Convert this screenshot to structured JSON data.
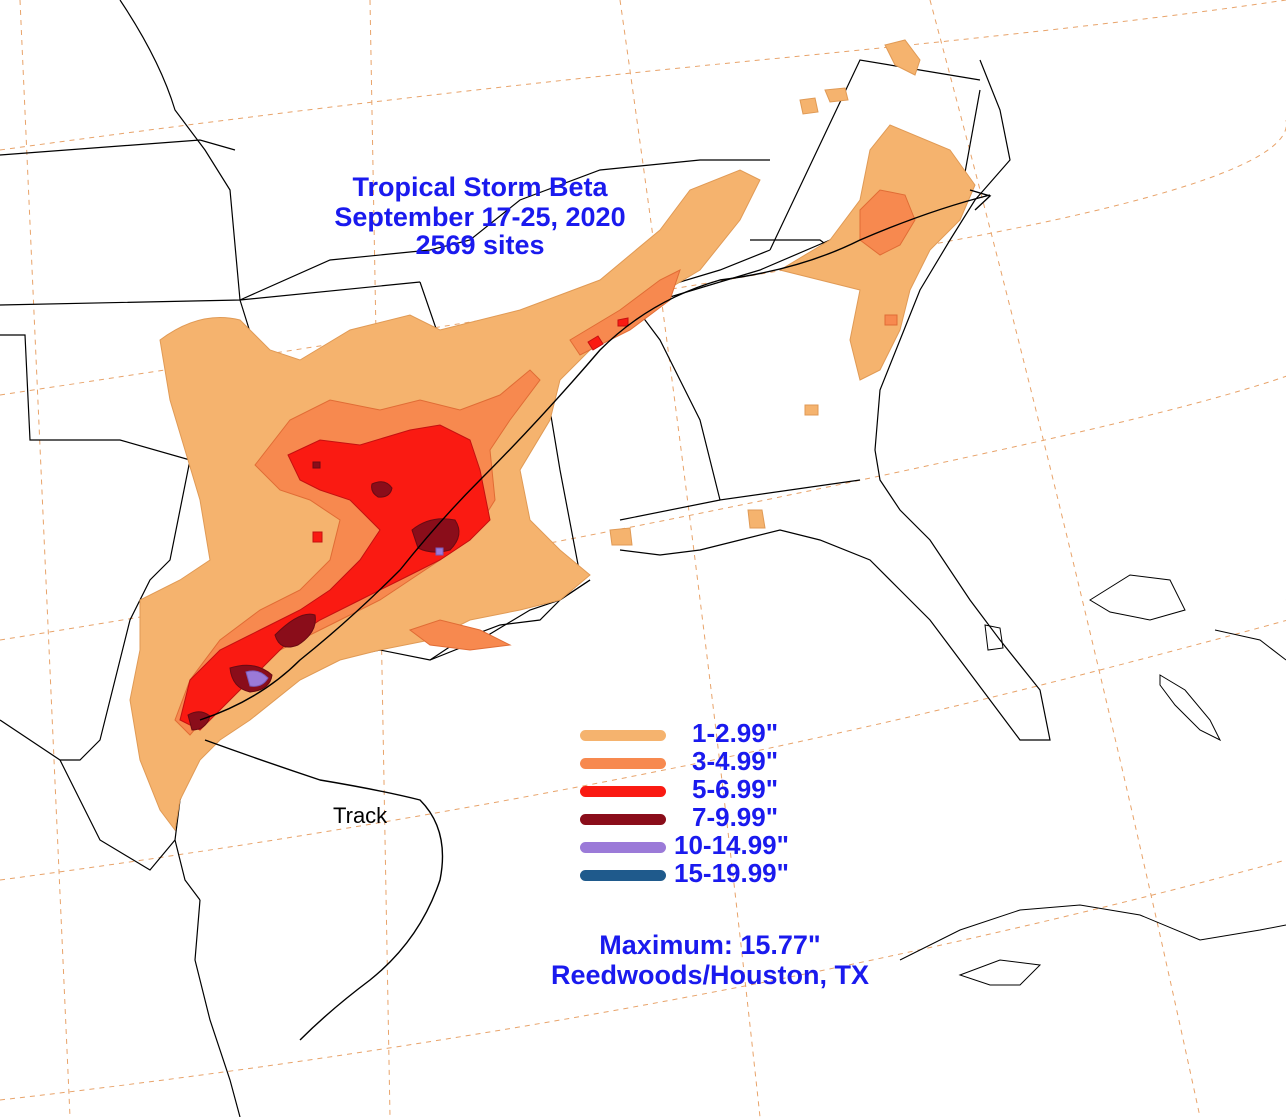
{
  "title": {
    "line1": "Tropical Storm Beta",
    "line2": "September 17-25, 2020",
    "line3": "2569 sites"
  },
  "track_label": "Track",
  "legend": [
    {
      "label": "1-2.99\"",
      "color": "#f5b36e"
    },
    {
      "label": "3-4.99\"",
      "color": "#f7894f"
    },
    {
      "label": "5-6.99\"",
      "color": "#fa1a12"
    },
    {
      "label": "7-9.99\"",
      "color": "#8a0d1a"
    },
    {
      "label": "10-14.99\"",
      "color": "#9b7ad8"
    },
    {
      "label": "15-19.99\"",
      "color": "#1f5a8c"
    }
  ],
  "maximum": {
    "line1": "Maximum: 15.77\"",
    "line2": "Reedwoods/Houston, TX"
  },
  "colors": {
    "text": "#1a1aee",
    "graticule": "#e8a36a",
    "borders": "#000000"
  }
}
